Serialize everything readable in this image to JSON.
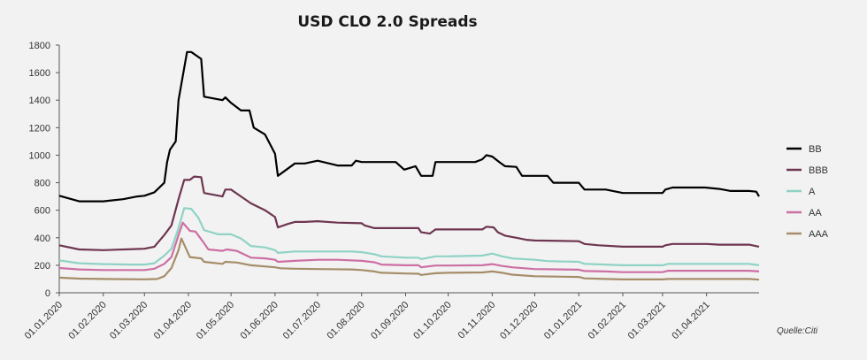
{
  "chart_data": {
    "type": "line",
    "title": "USD CLO 2.0 Spreads",
    "source": "Quelle:Citi",
    "ylim": [
      0,
      1800
    ],
    "yticks": [
      0,
      200,
      400,
      600,
      800,
      1000,
      1200,
      1400,
      1600,
      1800
    ],
    "xticks": [
      "01.01.2020",
      "01.02.2020",
      "01.03.2020",
      "01.04.2020",
      "01.05.2020",
      "01.06.2020",
      "01.07.2020",
      "01.08.2020",
      "01.09.2020",
      "01.10.2020",
      "01.11.2020",
      "01.12.2020",
      "01.01.2021",
      "01.02.2021",
      "01.03.2021",
      "01.04.2021"
    ],
    "xrange": [
      "01.01.2020",
      "08.05.2021"
    ],
    "grid": false,
    "legend_position": "right",
    "series": [
      {
        "name": "BB",
        "color": "#000000",
        "points": [
          [
            "01.01.2020",
            705
          ],
          [
            "15.01.2020",
            665
          ],
          [
            "01.02.2020",
            665
          ],
          [
            "15.02.2020",
            680
          ],
          [
            "25.02.2020",
            700
          ],
          [
            "01.03.2020",
            705
          ],
          [
            "08.03.2020",
            730
          ],
          [
            "11.03.2020",
            760
          ],
          [
            "15.03.2020",
            800
          ],
          [
            "17.03.2020",
            950
          ],
          [
            "19.03.2020",
            1040
          ],
          [
            "23.03.2020",
            1100
          ],
          [
            "25.03.2020",
            1400
          ],
          [
            "31.03.2020",
            1750
          ],
          [
            "03.04.2020",
            1750
          ],
          [
            "10.04.2020",
            1700
          ],
          [
            "12.04.2020",
            1425
          ],
          [
            "25.04.2020",
            1400
          ],
          [
            "27.04.2020",
            1420
          ],
          [
            "01.05.2020",
            1380
          ],
          [
            "08.05.2020",
            1325
          ],
          [
            "14.05.2020",
            1325
          ],
          [
            "17.05.2020",
            1200
          ],
          [
            "25.05.2020",
            1150
          ],
          [
            "01.06.2020",
            1010
          ],
          [
            "03.06.2020",
            850
          ],
          [
            "15.06.2020",
            940
          ],
          [
            "22.06.2020",
            940
          ],
          [
            "01.07.2020",
            960
          ],
          [
            "15.07.2020",
            925
          ],
          [
            "25.07.2020",
            925
          ],
          [
            "28.07.2020",
            960
          ],
          [
            "01.08.2020",
            950
          ],
          [
            "25.08.2020",
            950
          ],
          [
            "31.08.2020",
            895
          ],
          [
            "08.09.2020",
            920
          ],
          [
            "12.09.2020",
            850
          ],
          [
            "20.09.2020",
            850
          ],
          [
            "22.09.2020",
            950
          ],
          [
            "01.10.2020",
            950
          ],
          [
            "20.10.2020",
            950
          ],
          [
            "25.10.2020",
            970
          ],
          [
            "28.10.2020",
            1000
          ],
          [
            "01.11.2020",
            990
          ],
          [
            "06.11.2020",
            950
          ],
          [
            "10.11.2020",
            920
          ],
          [
            "18.11.2020",
            915
          ],
          [
            "22.11.2020",
            850
          ],
          [
            "01.12.2020",
            850
          ],
          [
            "10.12.2020",
            850
          ],
          [
            "14.12.2020",
            800
          ],
          [
            "01.01.2021",
            800
          ],
          [
            "05.01.2021",
            750
          ],
          [
            "20.01.2021",
            750
          ],
          [
            "01.02.2021",
            725
          ],
          [
            "01.03.2021",
            725
          ],
          [
            "03.03.2021",
            750
          ],
          [
            "08.03.2021",
            765
          ],
          [
            "20.03.2021",
            765
          ],
          [
            "31.03.2021",
            765
          ],
          [
            "10.04.2021",
            755
          ],
          [
            "18.04.2021",
            740
          ],
          [
            "01.05.2021",
            740
          ],
          [
            "06.05.2021",
            735
          ],
          [
            "08.05.2021",
            700
          ]
        ]
      },
      {
        "name": "BBB",
        "color": "#6e3550",
        "points": [
          [
            "01.01.2020",
            345
          ],
          [
            "15.01.2020",
            315
          ],
          [
            "01.02.2020",
            310
          ],
          [
            "25.02.2020",
            318
          ],
          [
            "01.03.2020",
            320
          ],
          [
            "08.03.2020",
            335
          ],
          [
            "15.03.2020",
            420
          ],
          [
            "20.03.2020",
            490
          ],
          [
            "25.03.2020",
            680
          ],
          [
            "29.03.2020",
            820
          ],
          [
            "02.04.2020",
            820
          ],
          [
            "05.04.2020",
            845
          ],
          [
            "10.04.2020",
            840
          ],
          [
            "12.04.2020",
            725
          ],
          [
            "25.04.2020",
            700
          ],
          [
            "27.04.2020",
            750
          ],
          [
            "01.05.2020",
            750
          ],
          [
            "08.05.2020",
            700
          ],
          [
            "15.05.2020",
            650
          ],
          [
            "25.05.2020",
            600
          ],
          [
            "01.06.2020",
            550
          ],
          [
            "03.06.2020",
            475
          ],
          [
            "10.06.2020",
            500
          ],
          [
            "15.06.2020",
            515
          ],
          [
            "22.06.2020",
            515
          ],
          [
            "01.07.2020",
            520
          ],
          [
            "15.07.2020",
            510
          ],
          [
            "01.08.2020",
            505
          ],
          [
            "03.08.2020",
            490
          ],
          [
            "10.08.2020",
            470
          ],
          [
            "01.09.2020",
            470
          ],
          [
            "10.09.2020",
            470
          ],
          [
            "12.09.2020",
            440
          ],
          [
            "18.09.2020",
            430
          ],
          [
            "22.09.2020",
            460
          ],
          [
            "01.10.2020",
            460
          ],
          [
            "25.10.2020",
            460
          ],
          [
            "28.10.2020",
            480
          ],
          [
            "02.11.2020",
            475
          ],
          [
            "05.11.2020",
            440
          ],
          [
            "10.11.2020",
            415
          ],
          [
            "18.11.2020",
            400
          ],
          [
            "25.11.2020",
            385
          ],
          [
            "01.12.2020",
            380
          ],
          [
            "01.01.2021",
            375
          ],
          [
            "05.01.2021",
            355
          ],
          [
            "15.01.2021",
            345
          ],
          [
            "01.02.2021",
            335
          ],
          [
            "01.03.2021",
            335
          ],
          [
            "03.03.2021",
            345
          ],
          [
            "08.03.2021",
            355
          ],
          [
            "01.04.2021",
            355
          ],
          [
            "10.04.2021",
            350
          ],
          [
            "01.05.2021",
            350
          ],
          [
            "08.05.2021",
            335
          ]
        ]
      },
      {
        "name": "A",
        "color": "#8fd3c5",
        "points": [
          [
            "01.01.2020",
            235
          ],
          [
            "15.01.2020",
            215
          ],
          [
            "01.02.2020",
            208
          ],
          [
            "20.02.2020",
            205
          ],
          [
            "01.03.2020",
            205
          ],
          [
            "08.03.2020",
            215
          ],
          [
            "15.03.2020",
            270
          ],
          [
            "20.03.2020",
            320
          ],
          [
            "25.03.2020",
            470
          ],
          [
            "29.03.2020",
            615
          ],
          [
            "03.04.2020",
            610
          ],
          [
            "08.04.2020",
            545
          ],
          [
            "12.04.2020",
            455
          ],
          [
            "22.04.2020",
            425
          ],
          [
            "01.05.2020",
            425
          ],
          [
            "08.05.2020",
            395
          ],
          [
            "15.05.2020",
            340
          ],
          [
            "25.05.2020",
            330
          ],
          [
            "01.06.2020",
            310
          ],
          [
            "03.06.2020",
            290
          ],
          [
            "15.06.2020",
            300
          ],
          [
            "01.07.2020",
            300
          ],
          [
            "25.07.2020",
            300
          ],
          [
            "01.08.2020",
            295
          ],
          [
            "10.08.2020",
            280
          ],
          [
            "15.08.2020",
            265
          ],
          [
            "01.09.2020",
            255
          ],
          [
            "10.09.2020",
            255
          ],
          [
            "12.09.2020",
            245
          ],
          [
            "22.09.2020",
            265
          ],
          [
            "01.10.2020",
            265
          ],
          [
            "25.10.2020",
            270
          ],
          [
            "01.11.2020",
            285
          ],
          [
            "08.11.2020",
            265
          ],
          [
            "15.11.2020",
            250
          ],
          [
            "01.12.2020",
            240
          ],
          [
            "10.12.2020",
            230
          ],
          [
            "01.01.2021",
            225
          ],
          [
            "05.01.2021",
            210
          ],
          [
            "20.01.2021",
            205
          ],
          [
            "01.02.2021",
            200
          ],
          [
            "01.03.2021",
            200
          ],
          [
            "05.03.2021",
            210
          ],
          [
            "01.04.2021",
            210
          ],
          [
            "01.05.2021",
            210
          ],
          [
            "08.05.2021",
            200
          ]
        ]
      },
      {
        "name": "AA",
        "color": "#cc6fa4",
        "points": [
          [
            "01.01.2020",
            180
          ],
          [
            "15.01.2020",
            170
          ],
          [
            "01.02.2020",
            165
          ],
          [
            "01.03.2020",
            165
          ],
          [
            "08.03.2020",
            175
          ],
          [
            "15.03.2020",
            210
          ],
          [
            "20.03.2020",
            260
          ],
          [
            "25.03.2020",
            420
          ],
          [
            "28.03.2020",
            510
          ],
          [
            "02.04.2020",
            450
          ],
          [
            "06.04.2020",
            445
          ],
          [
            "12.04.2020",
            360
          ],
          [
            "15.04.2020",
            315
          ],
          [
            "25.04.2020",
            305
          ],
          [
            "28.04.2020",
            315
          ],
          [
            "05.05.2020",
            305
          ],
          [
            "15.05.2020",
            255
          ],
          [
            "25.05.2020",
            250
          ],
          [
            "01.06.2020",
            240
          ],
          [
            "03.06.2020",
            225
          ],
          [
            "15.06.2020",
            232
          ],
          [
            "01.07.2020",
            240
          ],
          [
            "15.07.2020",
            240
          ],
          [
            "01.08.2020",
            232
          ],
          [
            "10.08.2020",
            222
          ],
          [
            "15.08.2020",
            205
          ],
          [
            "01.09.2020",
            200
          ],
          [
            "10.09.2020",
            200
          ],
          [
            "12.09.2020",
            185
          ],
          [
            "22.09.2020",
            198
          ],
          [
            "01.10.2020",
            198
          ],
          [
            "25.10.2020",
            200
          ],
          [
            "01.11.2020",
            208
          ],
          [
            "08.11.2020",
            195
          ],
          [
            "15.11.2020",
            185
          ],
          [
            "01.12.2020",
            172
          ],
          [
            "01.01.2021",
            168
          ],
          [
            "05.01.2021",
            158
          ],
          [
            "20.01.2021",
            155
          ],
          [
            "01.02.2021",
            150
          ],
          [
            "01.03.2021",
            150
          ],
          [
            "05.03.2021",
            160
          ],
          [
            "01.04.2021",
            160
          ],
          [
            "01.05.2021",
            160
          ],
          [
            "08.05.2021",
            155
          ]
        ]
      },
      {
        "name": "AAA",
        "color": "#a68d6a",
        "points": [
          [
            "01.01.2020",
            110
          ],
          [
            "15.01.2020",
            103
          ],
          [
            "01.02.2020",
            100
          ],
          [
            "01.03.2020",
            98
          ],
          [
            "10.03.2020",
            100
          ],
          [
            "15.03.2020",
            120
          ],
          [
            "20.03.2020",
            180
          ],
          [
            "25.03.2020",
            310
          ],
          [
            "27.03.2020",
            395
          ],
          [
            "02.04.2020",
            260
          ],
          [
            "10.04.2020",
            250
          ],
          [
            "12.04.2020",
            225
          ],
          [
            "25.04.2020",
            210
          ],
          [
            "27.04.2020",
            225
          ],
          [
            "05.05.2020",
            220
          ],
          [
            "15.05.2020",
            200
          ],
          [
            "01.06.2020",
            185
          ],
          [
            "05.06.2020",
            178
          ],
          [
            "15.06.2020",
            175
          ],
          [
            "01.07.2020",
            172
          ],
          [
            "25.07.2020",
            170
          ],
          [
            "01.08.2020",
            165
          ],
          [
            "10.08.2020",
            155
          ],
          [
            "15.08.2020",
            145
          ],
          [
            "01.09.2020",
            140
          ],
          [
            "10.09.2020",
            138
          ],
          [
            "12.09.2020",
            130
          ],
          [
            "22.09.2020",
            142
          ],
          [
            "01.10.2020",
            145
          ],
          [
            "25.10.2020",
            148
          ],
          [
            "01.11.2020",
            155
          ],
          [
            "08.11.2020",
            145
          ],
          [
            "15.11.2020",
            132
          ],
          [
            "01.12.2020",
            120
          ],
          [
            "01.01.2021",
            115
          ],
          [
            "05.01.2021",
            105
          ],
          [
            "20.01.2021",
            100
          ],
          [
            "01.02.2021",
            97
          ],
          [
            "01.03.2021",
            97
          ],
          [
            "05.03.2021",
            100
          ],
          [
            "01.04.2021",
            100
          ],
          [
            "01.05.2021",
            100
          ],
          [
            "08.05.2021",
            95
          ]
        ]
      }
    ]
  }
}
